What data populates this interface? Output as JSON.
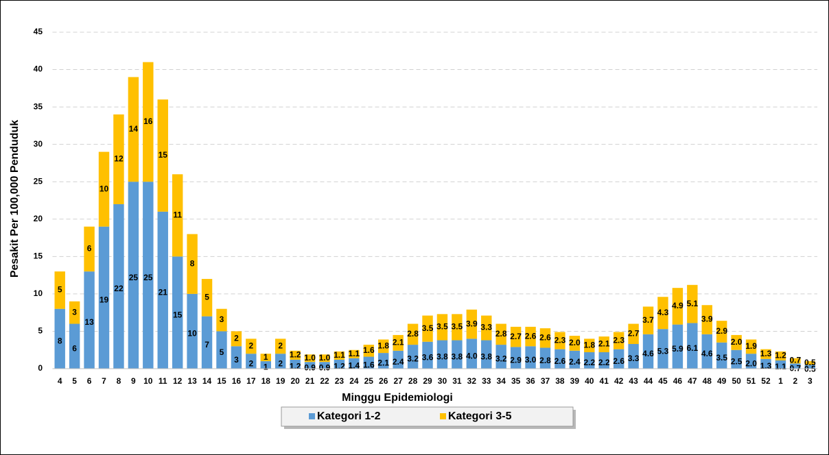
{
  "chart_data": {
    "type": "stacked_bar",
    "x_label": "Minggu Epidemiologi",
    "y_label": "Pesakit Per 100,000 Penduduk",
    "categories": [
      "4",
      "5",
      "6",
      "7",
      "8",
      "9",
      "10",
      "11",
      "12",
      "13",
      "14",
      "15",
      "16",
      "17",
      "18",
      "19",
      "20",
      "21",
      "22",
      "23",
      "24",
      "25",
      "26",
      "27",
      "28",
      "29",
      "30",
      "31",
      "32",
      "33",
      "34",
      "35",
      "36",
      "37",
      "38",
      "39",
      "40",
      "41",
      "42",
      "43",
      "44",
      "45",
      "46",
      "47",
      "48",
      "49",
      "50",
      "51",
      "52",
      "1",
      "2",
      "3"
    ],
    "series": [
      {
        "name": "Kategori 1-2",
        "color": "#5b9bd5",
        "values": [
          8,
          6,
          13,
          19,
          22,
          25,
          25,
          21,
          15,
          10,
          7,
          5,
          3,
          2,
          1,
          2,
          1.2,
          0.9,
          0.9,
          1.2,
          1.4,
          1.6,
          2.1,
          2.4,
          3.2,
          3.6,
          3.8,
          3.8,
          4.0,
          3.8,
          3.2,
          2.9,
          3.0,
          2.8,
          2.6,
          2.4,
          2.2,
          2.2,
          2.6,
          3.3,
          4.6,
          5.3,
          5.9,
          6.1,
          4.6,
          3.5,
          2.5,
          2.0,
          1.3,
          1.1,
          0.7,
          0.5
        ],
        "value_labels": [
          "8",
          "6",
          "13",
          "19",
          "22",
          "25",
          "25",
          "21",
          "15",
          "10",
          "7",
          "5",
          "3",
          "2",
          "1",
          "2",
          "1.2",
          "0.9",
          "0.9",
          "1.2",
          "1.4",
          "1.6",
          "2.1",
          "2.4",
          "3.2",
          "3.6",
          "3.8",
          "3.8",
          "4.0",
          "3.8",
          "3.2",
          "2.9",
          "3.0",
          "2.8",
          "2.6",
          "2.4",
          "2.2",
          "2.2",
          "2.6",
          "3.3",
          "4.6",
          "5.3",
          "5.9",
          "6.1",
          "4.6",
          "3.5",
          "2.5",
          "2.0",
          "1.3",
          "1.1",
          "0.7",
          "0.5"
        ]
      },
      {
        "name": "Kategori 3-5",
        "color": "#ffc000",
        "values": [
          5,
          3,
          6,
          10,
          12,
          14,
          16,
          15,
          11,
          8,
          5,
          3,
          2,
          2,
          1,
          2,
          1.2,
          1.0,
          1.0,
          1.1,
          1.1,
          1.6,
          1.8,
          2.1,
          2.8,
          3.5,
          3.5,
          3.5,
          3.9,
          3.3,
          2.8,
          2.7,
          2.6,
          2.6,
          2.3,
          2.0,
          1.8,
          2.1,
          2.3,
          2.7,
          3.7,
          4.3,
          4.9,
          5.1,
          3.9,
          2.9,
          2.0,
          1.9,
          1.3,
          1.2,
          0.7,
          0.5
        ],
        "value_labels": [
          "5",
          "3",
          "6",
          "10",
          "12",
          "14",
          "16",
          "15",
          "11",
          "8",
          "5",
          "3",
          "2",
          "2",
          "1",
          "2",
          "1.2",
          "1.0",
          "1.0",
          "1.1",
          "1.1",
          "1.6",
          "1.8",
          "2.1",
          "2.8",
          "3.5",
          "3.5",
          "3.5",
          "3.9",
          "3.3",
          "2.8",
          "2.7",
          "2.6",
          "2.6",
          "2.3",
          "2.0",
          "1.8",
          "2.1",
          "2.3",
          "2.7",
          "3.7",
          "4.3",
          "4.9",
          "5.1",
          "3.9",
          "2.9",
          "2.0",
          "1.9",
          "1.3",
          "1.2",
          "0.7",
          "0.5"
        ]
      }
    ],
    "ylim": [
      0,
      45
    ],
    "yticks": [
      0,
      5,
      10,
      15,
      20,
      25,
      30,
      35,
      40,
      45
    ],
    "grid": true,
    "legend": "bottom"
  }
}
